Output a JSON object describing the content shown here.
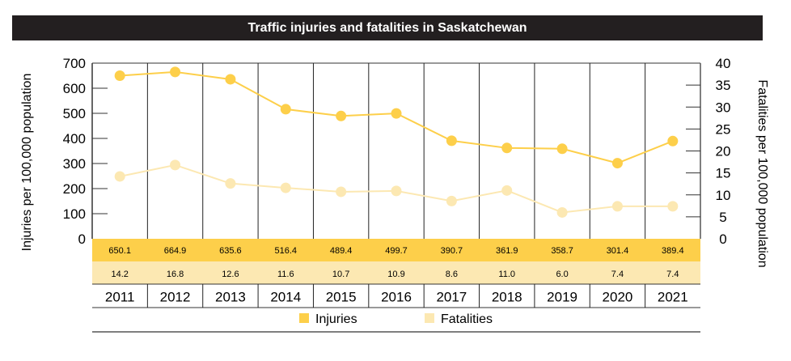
{
  "chart_data": {
    "type": "line",
    "title": "Traffic injuries and fatalities in Saskatchewan",
    "categories": [
      "2011",
      "2012",
      "2013",
      "2014",
      "2015",
      "2016",
      "2017",
      "2018",
      "2019",
      "2020",
      "2021"
    ],
    "series": [
      {
        "name": "Injuries",
        "axis": "left",
        "color": "#fdcf4a",
        "values": [
          650.1,
          664.9,
          635.6,
          516.4,
          489.4,
          499.7,
          390.7,
          361.9,
          358.7,
          301.4,
          389.4
        ]
      },
      {
        "name": "Fatalities",
        "axis": "right",
        "color": "#fce8b2",
        "values": [
          14.2,
          16.8,
          12.6,
          11.6,
          10.7,
          10.9,
          8.6,
          11.0,
          6.0,
          7.4,
          7.4
        ]
      }
    ],
    "ylabel": "Injuries per 100,000 population",
    "ylabel_right": "Fatalities per 100,000 population",
    "ylim": [
      0,
      700
    ],
    "ylim_right": [
      0,
      40
    ],
    "yticks": [
      0,
      100,
      200,
      300,
      400,
      500,
      600,
      700
    ],
    "yticks_right": [
      0,
      5,
      10,
      15,
      20,
      25,
      30,
      35,
      40
    ],
    "injury_labels": [
      "650.1",
      "664.9",
      "635.6",
      "516.4",
      "489.4",
      "499.7",
      "390.7",
      "361.9",
      "358.7",
      "301.4",
      "389.4"
    ],
    "fatality_labels": [
      "14.2",
      "16.8",
      "12.6",
      "11.6",
      "10.7",
      "10.9",
      "8.6",
      "11.0",
      "6.0",
      "7.4",
      "7.4"
    ],
    "legend": [
      "Injuries",
      "Fatalities"
    ],
    "legend_position": "bottom",
    "grid": "vertical column dividers"
  }
}
